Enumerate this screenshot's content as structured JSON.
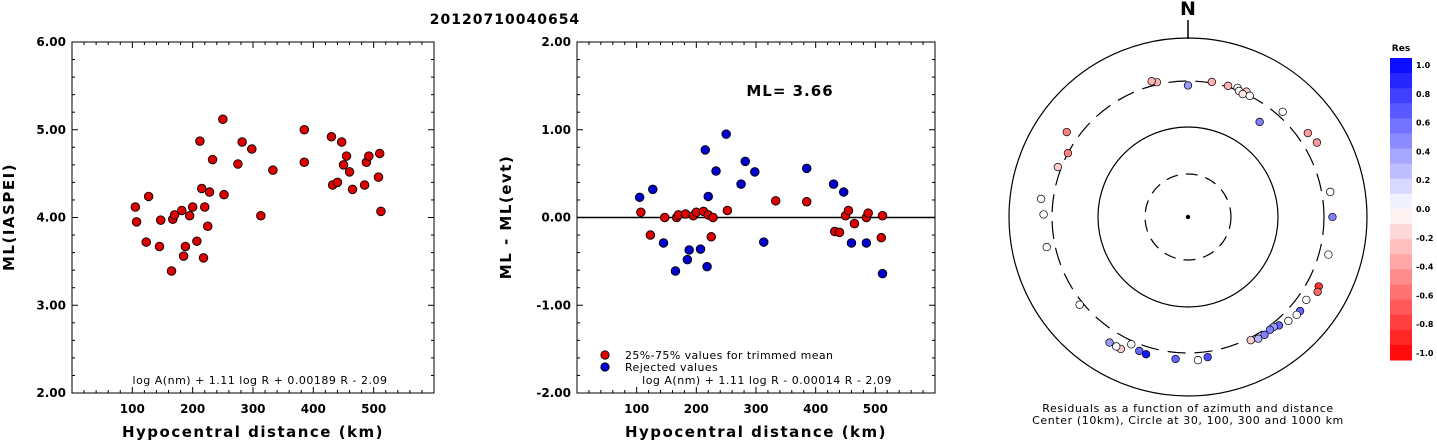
{
  "title": "20120710040654",
  "chart_data": [
    {
      "type": "scatter",
      "xlabel": "Hypocentral distance (km)",
      "ylabel": "ML(IASPEI)",
      "xlim": [
        0,
        600
      ],
      "ylim": [
        2.0,
        6.0
      ],
      "x_ticks": [
        100,
        200,
        300,
        400,
        500
      ],
      "y_ticks": [
        "2.00",
        "3.00",
        "4.00",
        "5.00",
        "6.00"
      ],
      "formula": "log A(nm) + 1.11 log R + 0.00189 R - 2.09",
      "point_color": "#dd0000",
      "points": [
        [
          105,
          4.12
        ],
        [
          107,
          3.95
        ],
        [
          123,
          3.72
        ],
        [
          127,
          4.24
        ],
        [
          145,
          3.67
        ],
        [
          147,
          3.97
        ],
        [
          165,
          3.39
        ],
        [
          167,
          3.98
        ],
        [
          170,
          4.03
        ],
        [
          182,
          4.08
        ],
        [
          185,
          3.56
        ],
        [
          188,
          3.67
        ],
        [
          195,
          4.02
        ],
        [
          200,
          4.12
        ],
        [
          207,
          3.73
        ],
        [
          212,
          4.87
        ],
        [
          215,
          4.33
        ],
        [
          218,
          3.54
        ],
        [
          220,
          4.12
        ],
        [
          225,
          3.9
        ],
        [
          228,
          4.29
        ],
        [
          233,
          4.66
        ],
        [
          250,
          5.12
        ],
        [
          252,
          4.26
        ],
        [
          275,
          4.61
        ],
        [
          282,
          4.86
        ],
        [
          298,
          4.78
        ],
        [
          313,
          4.02
        ],
        [
          333,
          4.54
        ],
        [
          385,
          5.0
        ],
        [
          385,
          4.63
        ],
        [
          430,
          4.92
        ],
        [
          432,
          4.37
        ],
        [
          440,
          4.4
        ],
        [
          447,
          4.86
        ],
        [
          450,
          4.6
        ],
        [
          455,
          4.7
        ],
        [
          460,
          4.52
        ],
        [
          465,
          4.32
        ],
        [
          485,
          4.37
        ],
        [
          488,
          4.63
        ],
        [
          492,
          4.7
        ],
        [
          508,
          4.46
        ],
        [
          510,
          4.73
        ],
        [
          512,
          4.07
        ]
      ]
    },
    {
      "type": "scatter",
      "xlabel": "Hypocentral distance (km)",
      "ylabel": "ML - ML(evt)",
      "xlim": [
        0,
        600
      ],
      "ylim": [
        -2.0,
        2.0
      ],
      "x_ticks": [
        100,
        200,
        300,
        400,
        500
      ],
      "y_ticks": [
        "-2.00",
        "-1.00",
        "0.00",
        "1.00",
        "2.00"
      ],
      "zero_line": 0,
      "ml_label": "ML= 3.66",
      "legend": [
        "25%-75% values for trimmed mean",
        "Rejected values"
      ],
      "formula": "log A(nm) + 1.11 log R - 0.00014 R - 2.09",
      "series": [
        {
          "name": "25%-75% values for trimmed mean",
          "color": "#dd0000",
          "points": [
            [
              107,
              0.06
            ],
            [
              123,
              -0.2
            ],
            [
              147,
              0.0
            ],
            [
              167,
              0.0
            ],
            [
              170,
              0.03
            ],
            [
              182,
              0.04
            ],
            [
              195,
              0.02
            ],
            [
              200,
              0.06
            ],
            [
              212,
              0.07
            ],
            [
              220,
              0.03
            ],
            [
              225,
              -0.22
            ],
            [
              228,
              -0.0
            ],
            [
              252,
              0.08
            ],
            [
              333,
              0.19
            ],
            [
              385,
              0.18
            ],
            [
              432,
              -0.16
            ],
            [
              440,
              -0.17
            ],
            [
              450,
              0.02
            ],
            [
              455,
              0.08
            ],
            [
              465,
              -0.07
            ],
            [
              485,
              0.0
            ],
            [
              488,
              0.05
            ],
            [
              510,
              -0.23
            ],
            [
              512,
              0.02
            ]
          ]
        },
        {
          "name": "Rejected values",
          "color": "#0000cc",
          "points": [
            [
              105,
              0.23
            ],
            [
              127,
              0.32
            ],
            [
              145,
              -0.29
            ],
            [
              165,
              -0.61
            ],
            [
              185,
              -0.48
            ],
            [
              188,
              -0.37
            ],
            [
              207,
              -0.36
            ],
            [
              215,
              0.77
            ],
            [
              218,
              -0.56
            ],
            [
              220,
              0.24
            ],
            [
              233,
              0.53
            ],
            [
              250,
              0.95
            ],
            [
              275,
              0.38
            ],
            [
              282,
              0.64
            ],
            [
              298,
              0.52
            ],
            [
              313,
              -0.28
            ],
            [
              385,
              0.56
            ],
            [
              430,
              0.38
            ],
            [
              447,
              0.29
            ],
            [
              460,
              -0.29
            ],
            [
              485,
              -0.29
            ],
            [
              512,
              -0.64
            ]
          ]
        }
      ]
    },
    {
      "type": "scatter",
      "subtype": "polar",
      "north_label": "N",
      "caption_lines": [
        "Residuals as a function of azimuth and distance",
        "Center (10km), Circle at 30, 100, 300 and 1000 km"
      ],
      "colorbar": {
        "title": "Res",
        "min": -1.0,
        "max": 1.0,
        "labels": [
          "1.0",
          "0.8",
          "0.6",
          "0.4",
          "0.2",
          "0.0",
          "-0.2",
          "-0.4",
          "-0.6",
          "-0.8",
          "-1.0"
        ],
        "positive_color": "#0000ff",
        "negative_color": "#ff0000"
      },
      "rings_km": [
        30,
        100,
        300,
        1000
      ],
      "points": [
        {
          "az": 347,
          "d": 320,
          "r": -0.3
        },
        {
          "az": 10,
          "d": 310,
          "r": -0.3
        },
        {
          "az": 17,
          "d": 310,
          "r": -0.3
        },
        {
          "az": 25,
          "d": 320,
          "r": -0.2
        },
        {
          "az": 0,
          "d": 270,
          "r": 0.4
        },
        {
          "az": 21,
          "d": 320,
          "r": 0.0
        },
        {
          "az": 22,
          "d": 300,
          "r": 0.0
        },
        {
          "az": 24,
          "d": 290,
          "r": -0.1
        },
        {
          "az": 27,
          "d": 300,
          "r": 0.0
        },
        {
          "az": 42,
          "d": 350,
          "r": 0.0
        },
        {
          "az": 55,
          "d": 400,
          "r": -0.4
        },
        {
          "az": 60,
          "d": 430,
          "r": -0.4
        },
        {
          "az": 37,
          "d": 200,
          "r": 0.5
        },
        {
          "az": 80,
          "d": 380,
          "r": 0.0
        },
        {
          "az": 90,
          "d": 380,
          "r": 0.5
        },
        {
          "az": 105,
          "d": 390,
          "r": 0.0
        },
        {
          "az": 118,
          "d": 420,
          "r": -0.8
        },
        {
          "az": 120,
          "d": 440,
          "r": -0.6
        },
        {
          "az": 125,
          "d": 380,
          "r": 0.0
        },
        {
          "az": 130,
          "d": 400,
          "r": 0.6
        },
        {
          "az": 132,
          "d": 400,
          "r": 0.0
        },
        {
          "az": 136,
          "d": 380,
          "r": 0.0
        },
        {
          "az": 140,
          "d": 350,
          "r": 0.6
        },
        {
          "az": 142,
          "d": 330,
          "r": 0.4
        },
        {
          "az": 144,
          "d": 330,
          "r": 0.5
        },
        {
          "az": 147,
          "d": 340,
          "r": 0.5
        },
        {
          "az": 150,
          "d": 340,
          "r": 0.3
        },
        {
          "az": 153,
          "d": 320,
          "r": -0.2
        },
        {
          "az": 172,
          "d": 350,
          "r": 0.7
        },
        {
          "az": 176,
          "d": 370,
          "r": 0.0
        },
        {
          "az": 185,
          "d": 360,
          "r": 0.6
        },
        {
          "az": 197,
          "d": 370,
          "r": 0.9
        },
        {
          "az": 200,
          "d": 360,
          "r": 0.6
        },
        {
          "az": 204,
          "d": 330,
          "r": 0.0
        },
        {
          "az": 207,
          "d": 420,
          "r": -0.2
        },
        {
          "az": 209,
          "d": 420,
          "r": 0.0
        },
        {
          "az": 212,
          "d": 420,
          "r": 0.4
        },
        {
          "az": 231,
          "d": 330,
          "r": 0.0
        },
        {
          "az": 258,
          "d": 380,
          "r": 0.0
        },
        {
          "az": 271,
          "d": 380,
          "r": 0.0
        },
        {
          "az": 277,
          "d": 420,
          "r": 0.0
        },
        {
          "az": 291,
          "d": 330,
          "r": -0.2
        },
        {
          "az": 298,
          "d": 300,
          "r": -0.5
        },
        {
          "az": 305,
          "d": 420,
          "r": -0.5
        },
        {
          "az": 345,
          "d": 340,
          "r": -0.3
        }
      ]
    }
  ]
}
